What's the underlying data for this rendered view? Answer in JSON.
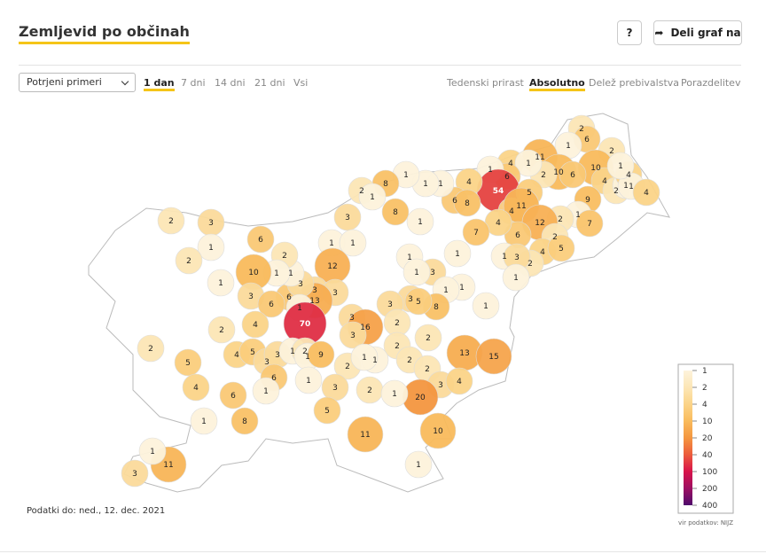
{
  "header": {
    "title": "Zemljevid po občinah",
    "help": "?",
    "share": "Deli graf na"
  },
  "controls": {
    "select": "Potrjeni primeri",
    "periods": [
      "1 dan",
      "7 dni",
      "14 dni",
      "21 dni",
      "Vsi"
    ],
    "active_period": 0,
    "modes": [
      "Tedenski prirast",
      "Absolutno",
      "Delež prebivalstva",
      "Porazdelitev"
    ],
    "active_mode": 1
  },
  "map": {
    "values": [
      2,
      6,
      2,
      1,
      11,
      10,
      10,
      6,
      2,
      4,
      1,
      6,
      1,
      54,
      5,
      4,
      11,
      4,
      6,
      8,
      4,
      9,
      2,
      1,
      4,
      1,
      4,
      1,
      1,
      7,
      2,
      12,
      2,
      4,
      5,
      2,
      6,
      4,
      7,
      1,
      1,
      1,
      8,
      8,
      1,
      2,
      1,
      3,
      1,
      1,
      1,
      1,
      3,
      1,
      1,
      3,
      1,
      1,
      1,
      8,
      3,
      5,
      3,
      1,
      12,
      3,
      3,
      13,
      6,
      3,
      1,
      2,
      1,
      10,
      6,
      2,
      3,
      1,
      2,
      1,
      3,
      6,
      1,
      70,
      3,
      16,
      3,
      2,
      2,
      2,
      13,
      15,
      2,
      2,
      3,
      4,
      20,
      10,
      4,
      2,
      2,
      5,
      4,
      5,
      3,
      3,
      1,
      2,
      1,
      9,
      6,
      2,
      1,
      1,
      1,
      3,
      2,
      5,
      1,
      4,
      6,
      1,
      1,
      8,
      11,
      11,
      1,
      3,
      1
    ],
    "legend": {
      "values": [
        1,
        2,
        4,
        10,
        20,
        40,
        100,
        200,
        400
      ],
      "colors": [
        "#fdf3dc",
        "#fce6b6",
        "#fbd488",
        "#f9bb5c",
        "#f49640",
        "#ec5b3c",
        "#d8134a",
        "#9c0f62",
        "#4f0a6c"
      ]
    }
  },
  "footer": {
    "updated": "Podatki do: ned., 12. dec. 2021",
    "source": "vir podatkov: NIJZ"
  }
}
